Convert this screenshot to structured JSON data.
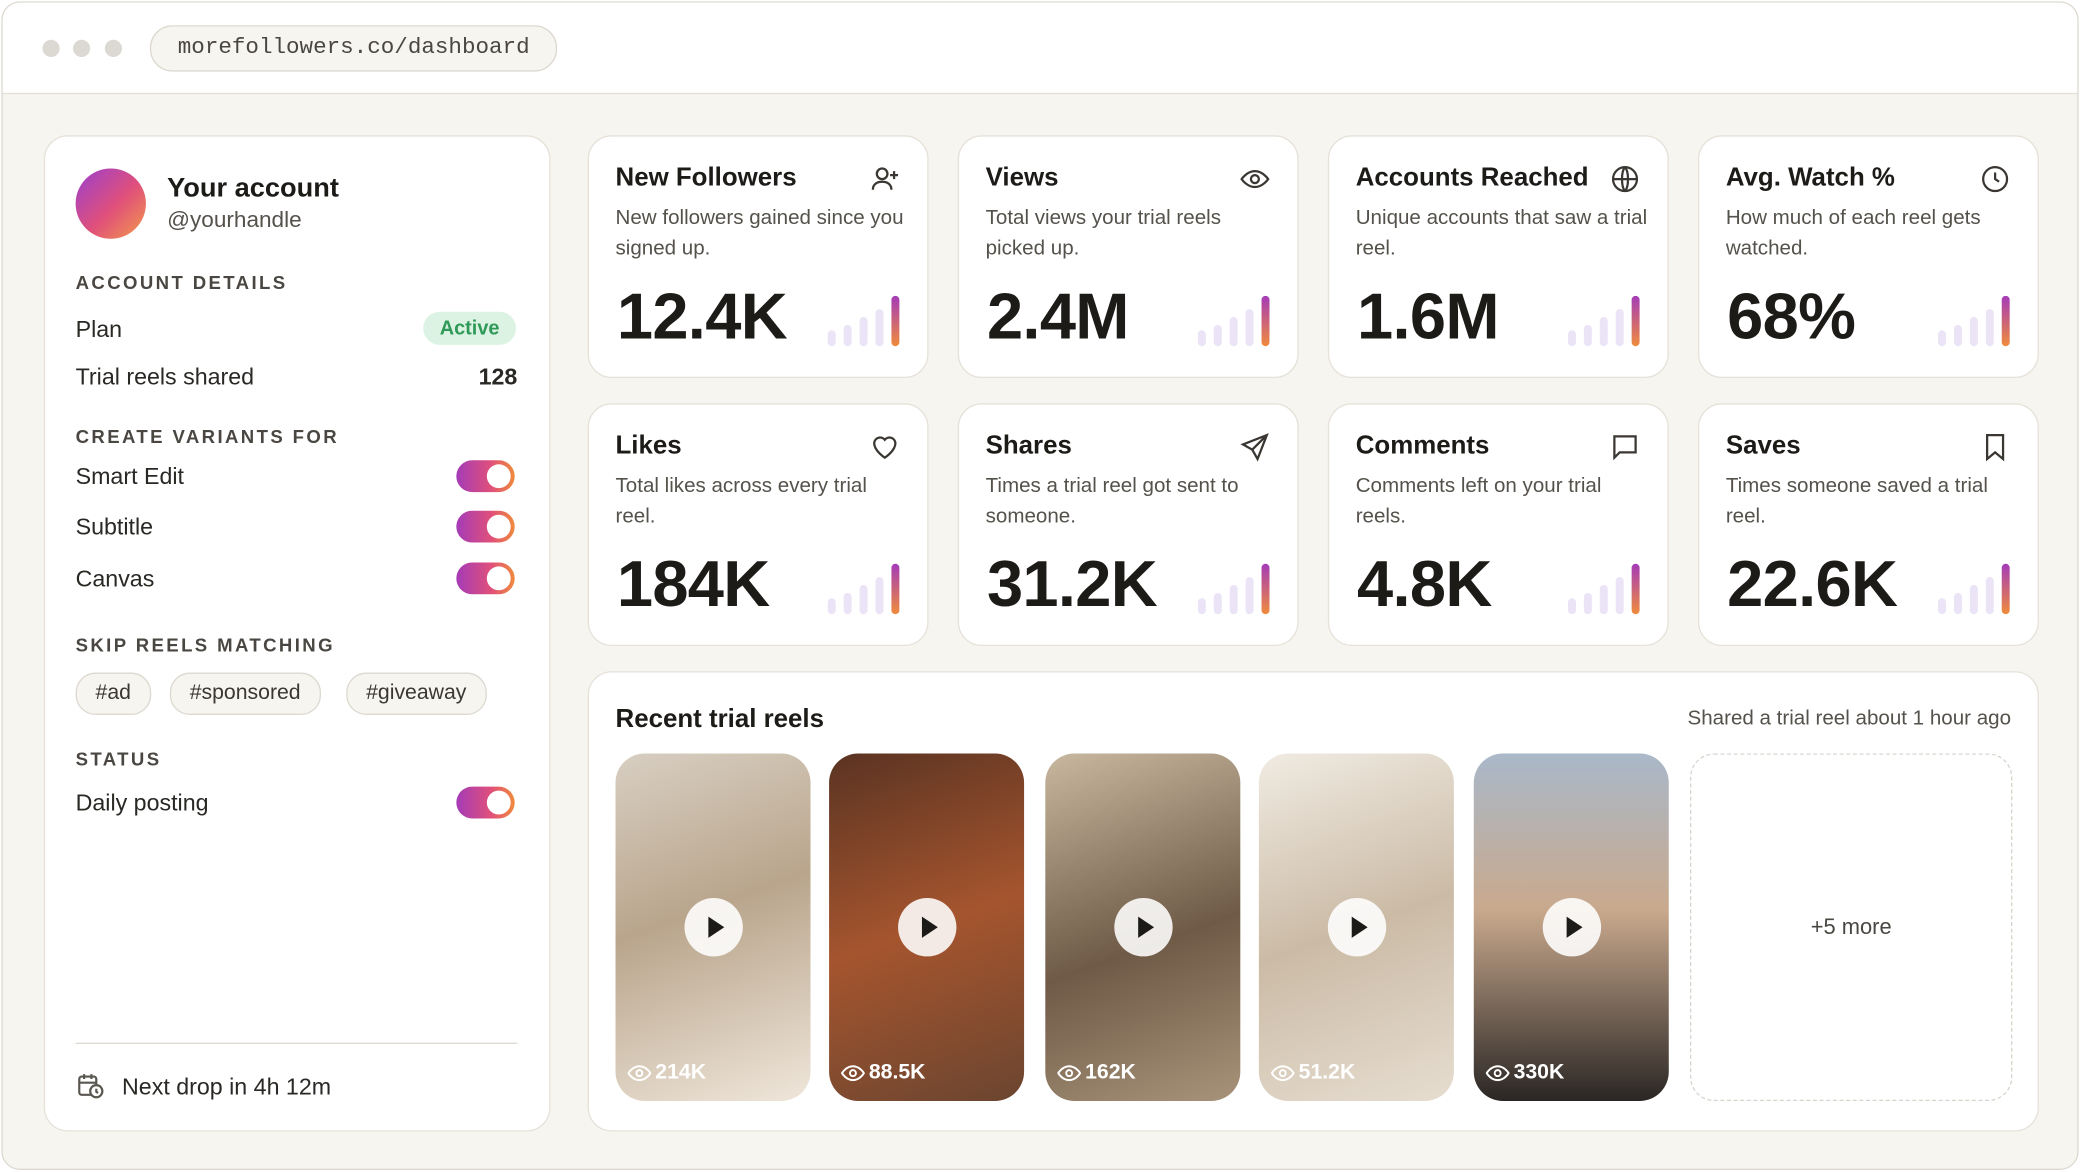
{
  "browser": {
    "url": "morefollowers.co/dashboard"
  },
  "account": {
    "name": "Your account",
    "handle": "@yourhandle",
    "details_heading": "ACCOUNT DETAILS",
    "plan_label": "Plan",
    "plan_status": "Active",
    "reels_label": "Trial reels shared",
    "reels_value": 128,
    "variants_heading": "CREATE VARIANTS FOR",
    "variants": [
      "Smart Edit",
      "Subtitle",
      "Canvas"
    ],
    "skip_heading": "SKIP REELS MATCHING",
    "skip_tags": [
      "#ad",
      "#sponsored",
      "#giveaway"
    ],
    "status_heading": "STATUS",
    "status_items": [
      "Daily posting"
    ],
    "footer": "Next drop in 4h 12m"
  },
  "stats": [
    {
      "title": "New Followers",
      "description": "New followers gained since you signed up.",
      "value": "12.4K"
    },
    {
      "title": "Views",
      "description": "Total views your trial reels picked up.",
      "value": "2.4M"
    },
    {
      "title": "Accounts Reached",
      "description": "Unique accounts that saw a trial reel.",
      "value": "1.6M"
    },
    {
      "title": "Avg. Watch %",
      "description": "How much of each reel gets watched.",
      "value": "68%"
    },
    {
      "title": "Likes",
      "description": "Total likes across every trial reel.",
      "value": "184K"
    },
    {
      "title": "Shares",
      "description": "Times a trial reel got sent to someone.",
      "value": "31.2K"
    },
    {
      "title": "Comments",
      "description": "Comments left on your trial reels.",
      "value": "4.8K"
    },
    {
      "title": "Saves",
      "description": "Times someone saved a trial reel.",
      "value": "22.6K"
    }
  ],
  "recent": {
    "title": "Recent trial reels",
    "subtitle": "Shared a trial reel about 1 hour ago",
    "reels": [
      {
        "views": "214K"
      },
      {
        "views": "88.5K"
      },
      {
        "views": "162K"
      },
      {
        "views": "51.2K"
      },
      {
        "views": "330K"
      }
    ],
    "more": "+5 more"
  }
}
